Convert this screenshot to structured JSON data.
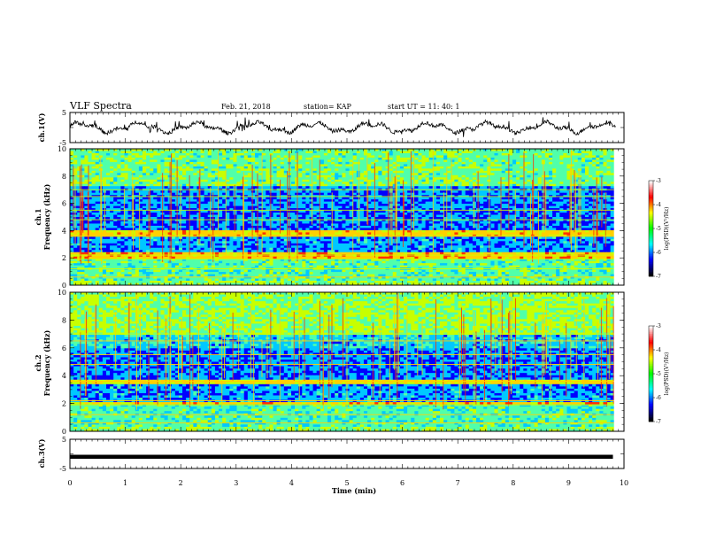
{
  "header": {
    "title": "VLF Spectra",
    "date": "Feb. 21, 2018",
    "station": "station= KAP",
    "start": "start  UT =   11: 40: 1"
  },
  "colors": {
    "black": "#000000",
    "spectrum_scale": [
      "#00007f",
      "#0000ff",
      "#00c8ff",
      "#50ffaa",
      "#c8ff00",
      "#ffd000",
      "#ff3000",
      "#d00000",
      "#ffffff"
    ]
  },
  "chart_data": [
    {
      "type": "line",
      "name": "ch1-waveform",
      "ylabel": "ch.1(V)",
      "ylim": [
        -5,
        5
      ],
      "yticks": [
        "5",
        "-5"
      ],
      "xlim": [
        0,
        10
      ],
      "grid": false
    },
    {
      "type": "heatmap",
      "name": "ch1-spectrogram",
      "ylabel": "ch.1\nFrequency (kHz)",
      "ylabel_line1": "ch.1",
      "ylabel_line2": "Frequency (kHz)",
      "ylim": [
        0,
        10
      ],
      "yticks": [
        "0",
        "2",
        "4",
        "6",
        "8",
        "10"
      ],
      "xlim": [
        0,
        10
      ],
      "colorbar": {
        "label": "log(PSD)(V²/Hz)",
        "range": [
          -7,
          -3
        ],
        "ticks": [
          "-3",
          "-4",
          "-5",
          "-6",
          "-7"
        ]
      }
    },
    {
      "type": "heatmap",
      "name": "ch2-spectrogram",
      "ylabel_line1": "ch.2",
      "ylabel_line2": "Frequency (kHz)",
      "ylim": [
        0,
        10
      ],
      "yticks": [
        "0",
        "2",
        "4",
        "6",
        "8",
        "10"
      ],
      "xlim": [
        0,
        10
      ],
      "colorbar": {
        "label": "log(PSD)(V²/Hz)",
        "range": [
          -7,
          -3
        ],
        "ticks": [
          "-3",
          "-4",
          "-5",
          "-6",
          "-7"
        ]
      }
    },
    {
      "type": "line",
      "name": "ch3-waveform",
      "ylabel": "ch.3(V)",
      "ylim": [
        -5,
        5
      ],
      "yticks": [
        "5",
        "-5"
      ],
      "x": [
        0,
        9.8
      ],
      "values": [
        -1,
        -1
      ],
      "xlim": [
        0,
        10
      ],
      "xlabel": "Time (min)",
      "xticks": [
        "0",
        "1",
        "2",
        "3",
        "4",
        "5",
        "6",
        "7",
        "8",
        "9",
        "10"
      ]
    }
  ]
}
